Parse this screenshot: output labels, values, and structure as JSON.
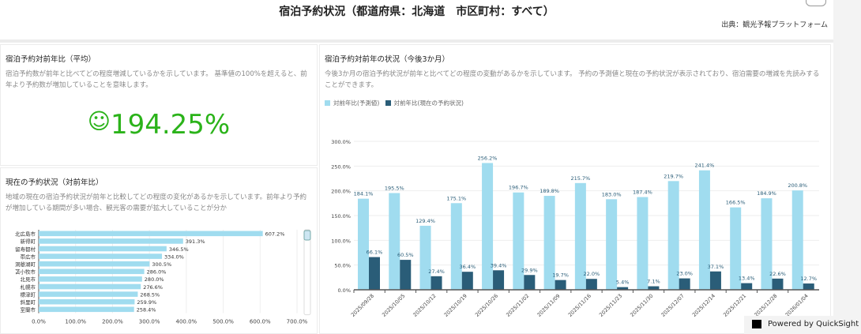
{
  "header": {
    "title": "宿泊予約状況（都道府県：北海道　市区町村：すべて）",
    "source": "出典：観光予報プラットフォーム"
  },
  "kpi_panel": {
    "title": "宿泊予約対前年比（平均）",
    "description": "宿泊予約数が前年と比べてどの程度増減しているかを示しています。 基準値の100%を超えると、前年より予約数が増加していることを意味します。",
    "value": "194.25%",
    "icon": "smiley-icon",
    "color": "#2bb31a"
  },
  "current_panel": {
    "title": "現在の予約状況（対前年比）",
    "description": "地域の現在の宿泊予約状況が前年と比較してどの程度の変化があるかを示しています。前年より予約が増加している期間が多い場合、観光客の需要が拡大していることが分か"
  },
  "forecast_panel": {
    "title": "宿泊予約対前年の状況（今後3か月）",
    "description": "今後3か月の宿泊予約状況が前年と比べてどの程度の変動があるかを示しています。 予約の予測値と現在の予約状況が表示されており、宿泊需要の増減を先読みすることができます。"
  },
  "footer": {
    "powered_by": "Powered by QuickSight"
  },
  "chart_data": [
    {
      "type": "bar",
      "orientation": "horizontal",
      "categories": [
        "北広島市",
        "新得町",
        "留寿都村",
        "帯広市",
        "洞爺湖町",
        "苫小牧市",
        "北見市",
        "札幌市",
        "標津町",
        "斜里町",
        "室蘭市"
      ],
      "values": [
        607.2,
        391.3,
        346.5,
        334.0,
        300.5,
        286.0,
        280.0,
        276.6,
        268.5,
        259.9,
        258.4
      ],
      "xlim": [
        0,
        700
      ],
      "xticks": [
        "0.0%",
        "100.0%",
        "200.0%",
        "300.0%",
        "400.0%",
        "500.0%",
        "600.0%",
        "700.0%"
      ],
      "color": "#a0dcef",
      "grid": true
    },
    {
      "type": "bar",
      "orientation": "vertical",
      "categories": [
        "2025/09/28",
        "2025/10/05",
        "2025/10/12",
        "2025/10/19",
        "2025/10/26",
        "2025/11/02",
        "2025/11/09",
        "2025/11/16",
        "2025/11/23",
        "2025/11/30",
        "2025/12/07",
        "2025/12/14",
        "2025/12/21",
        "2025/12/28",
        "2026/01/04"
      ],
      "series": [
        {
          "name": "対前年比(予測値)",
          "color": "#a0dcef",
          "values": [
            184.1,
            195.5,
            129.4,
            175.1,
            256.2,
            196.7,
            189.8,
            215.7,
            183.0,
            187.4,
            219.7,
            241.4,
            166.5,
            184.9,
            200.8
          ]
        },
        {
          "name": "対前年比(現在の予約状況)",
          "color": "#2a5d78",
          "values": [
            66.1,
            60.5,
            27.4,
            36.4,
            39.4,
            29.9,
            19.7,
            22.0,
            5.4,
            7.1,
            23.0,
            37.1,
            13.4,
            22.6,
            12.7
          ]
        }
      ],
      "ylim": [
        0,
        300
      ],
      "yticks": [
        "0.0%",
        "50.0%",
        "100.0%",
        "150.0%",
        "200.0%",
        "250.0%",
        "300.0%"
      ],
      "legend": "top-left",
      "grid": true
    }
  ]
}
